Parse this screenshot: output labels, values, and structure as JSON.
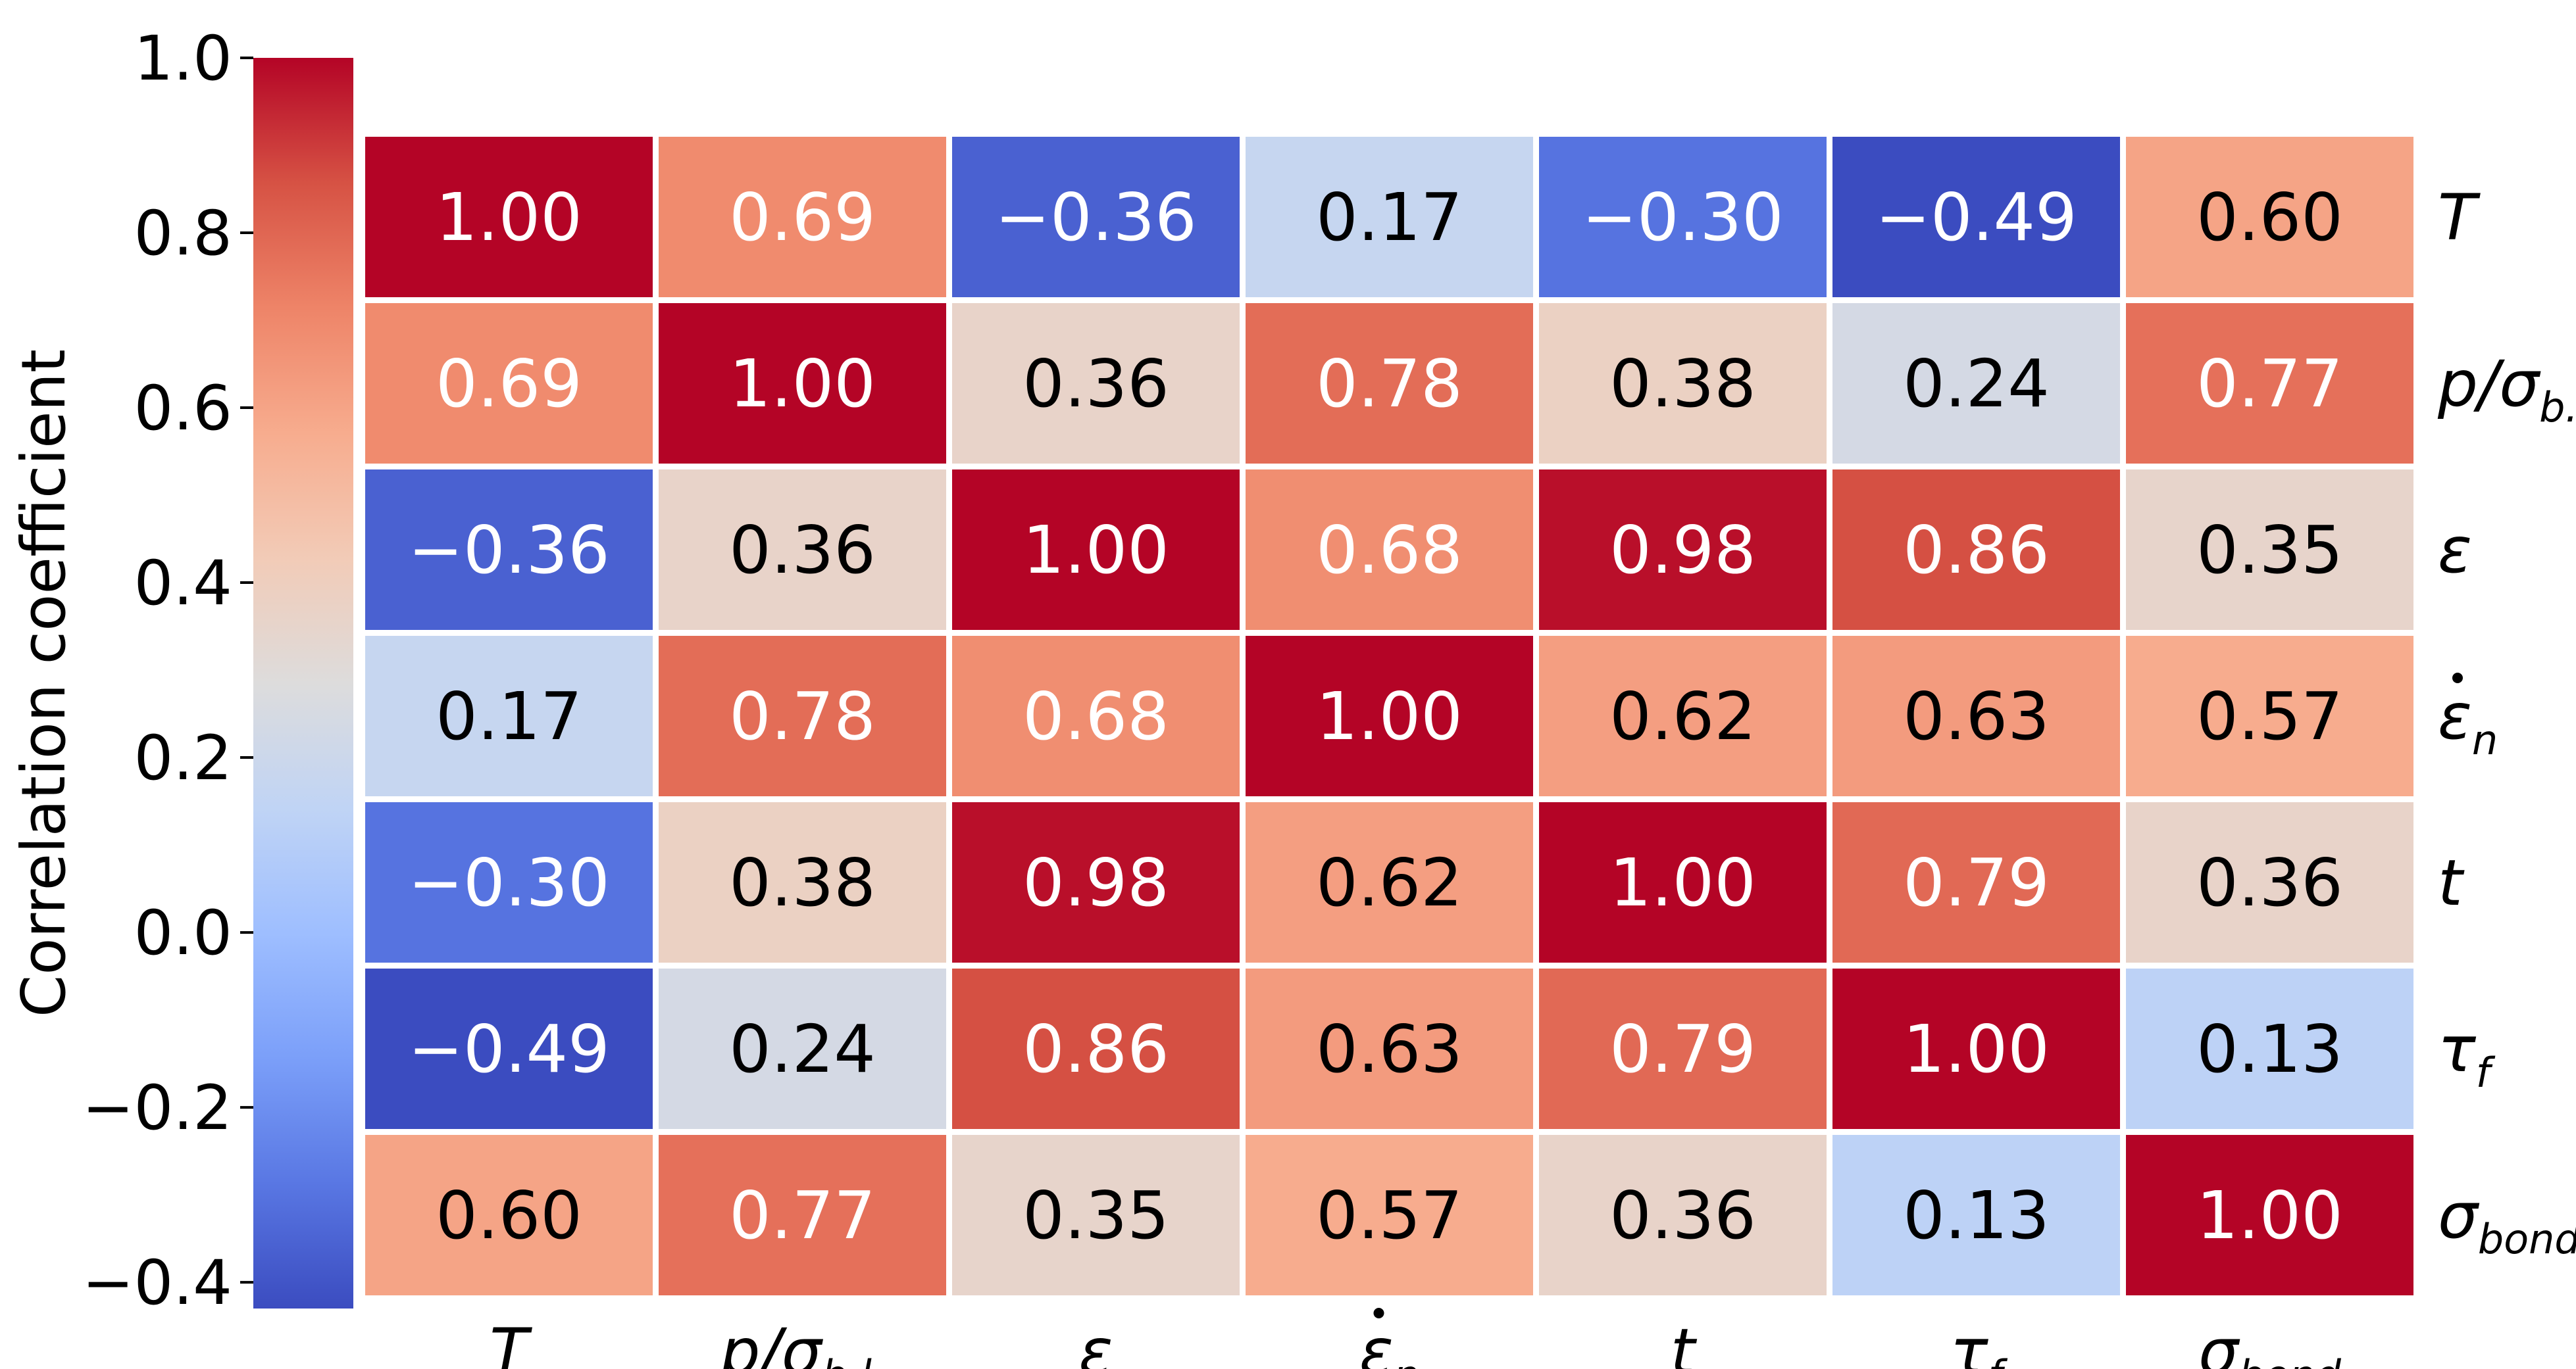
{
  "chart_data": {
    "type": "heatmap",
    "title": "",
    "variables": [
      {
        "base": "T",
        "sub": "",
        "dot": false
      },
      {
        "base": "p/σ",
        "sub": "b.l.",
        "dot": false
      },
      {
        "base": "ε",
        "sub": "",
        "dot": false
      },
      {
        "base": "ε",
        "sub": "n",
        "dot": true
      },
      {
        "base": "t",
        "sub": "",
        "dot": false
      },
      {
        "base": "τ",
        "sub": "f",
        "dot": false
      },
      {
        "base": "σ",
        "sub": "bond",
        "dot": false
      }
    ],
    "matrix": [
      [
        1.0,
        0.69,
        -0.36,
        0.17,
        -0.3,
        -0.49,
        0.6
      ],
      [
        0.69,
        1.0,
        0.36,
        0.78,
        0.38,
        0.24,
        0.77
      ],
      [
        -0.36,
        0.36,
        1.0,
        0.68,
        0.98,
        0.86,
        0.35
      ],
      [
        0.17,
        0.78,
        0.68,
        1.0,
        0.62,
        0.63,
        0.57
      ],
      [
        -0.3,
        0.38,
        0.98,
        0.62,
        1.0,
        0.79,
        0.36
      ],
      [
        -0.49,
        0.24,
        0.86,
        0.63,
        0.79,
        1.0,
        0.13
      ],
      [
        0.6,
        0.77,
        0.35,
        0.57,
        0.36,
        0.13,
        1.0
      ]
    ],
    "cell_labels": [
      [
        "1.00",
        "0.69",
        "−0.36",
        "0.17",
        "−0.30",
        "−0.49",
        "0.60"
      ],
      [
        "0.69",
        "1.00",
        "0.36",
        "0.78",
        "0.38",
        "0.24",
        "0.77"
      ],
      [
        "−0.36",
        "0.36",
        "1.00",
        "0.68",
        "0.98",
        "0.86",
        "0.35"
      ],
      [
        "0.17",
        "0.78",
        "0.68",
        "1.00",
        "0.62",
        "0.63",
        "0.57"
      ],
      [
        "−0.30",
        "0.38",
        "0.98",
        "0.62",
        "1.00",
        "0.79",
        "0.36"
      ],
      [
        "−0.49",
        "0.24",
        "0.86",
        "0.63",
        "0.79",
        "1.00",
        "0.13"
      ],
      [
        "0.60",
        "0.77",
        "0.35",
        "0.57",
        "0.36",
        "0.13",
        "1.00"
      ]
    ],
    "colorbar": {
      "label": "Correlation coefficient",
      "range": [
        -0.43,
        1.0
      ],
      "ticks": [
        1.0,
        0.8,
        0.6,
        0.4,
        0.2,
        0.0,
        -0.2,
        -0.4
      ],
      "tick_labels": [
        "1.0",
        "0.8",
        "0.6",
        "0.4",
        "0.2",
        "0.0",
        "−0.2",
        "−0.4"
      ],
      "colormap": "coolwarm",
      "position": "left"
    },
    "colormap_stops": [
      "#3b4cc0",
      "#5977e3",
      "#7b9ff9",
      "#9ebeff",
      "#c0d4f5",
      "#dddcdc",
      "#f2cbb7",
      "#f7ac8e",
      "#ee8468",
      "#d65244",
      "#b40426"
    ]
  }
}
